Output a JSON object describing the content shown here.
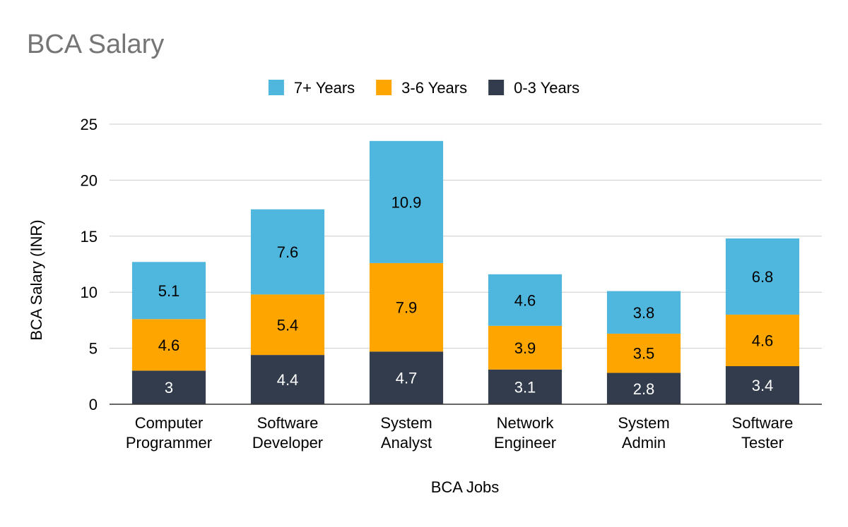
{
  "chart_data": {
    "type": "bar",
    "stacked": true,
    "title": "BCA Salary",
    "xlabel": "BCA Jobs",
    "ylabel": "BCA Salary (INR)",
    "ylim": [
      0,
      25
    ],
    "yticks": [
      0,
      5,
      10,
      15,
      20,
      25
    ],
    "grid": true,
    "legend_position": "top",
    "categories": [
      [
        "Computer",
        "Programmer"
      ],
      [
        "Software",
        "Developer"
      ],
      [
        "System",
        "Analyst"
      ],
      [
        "Network",
        "Engineer"
      ],
      [
        "System",
        "Admin"
      ],
      [
        "Software",
        "Tester"
      ]
    ],
    "series": [
      {
        "name": "0-3 Years",
        "color": "#323c4d",
        "label_color": "#ffffff",
        "values": [
          3,
          4.4,
          4.7,
          3.1,
          2.8,
          3.4
        ]
      },
      {
        "name": "3-6 Years",
        "color": "#ffa500",
        "label_color": "#000000",
        "values": [
          4.6,
          5.4,
          7.9,
          3.9,
          3.5,
          4.6
        ]
      },
      {
        "name": "7+ Years",
        "color": "#4fb6de",
        "label_color": "#000000",
        "values": [
          5.1,
          7.6,
          10.9,
          4.6,
          3.8,
          6.8
        ]
      }
    ],
    "legend_order": [
      "7+ Years",
      "3-6 Years",
      "0-3 Years"
    ]
  },
  "colors": {
    "title": "#757575",
    "text": "#000000",
    "grid": "#cccccc",
    "axis": "#333333"
  }
}
